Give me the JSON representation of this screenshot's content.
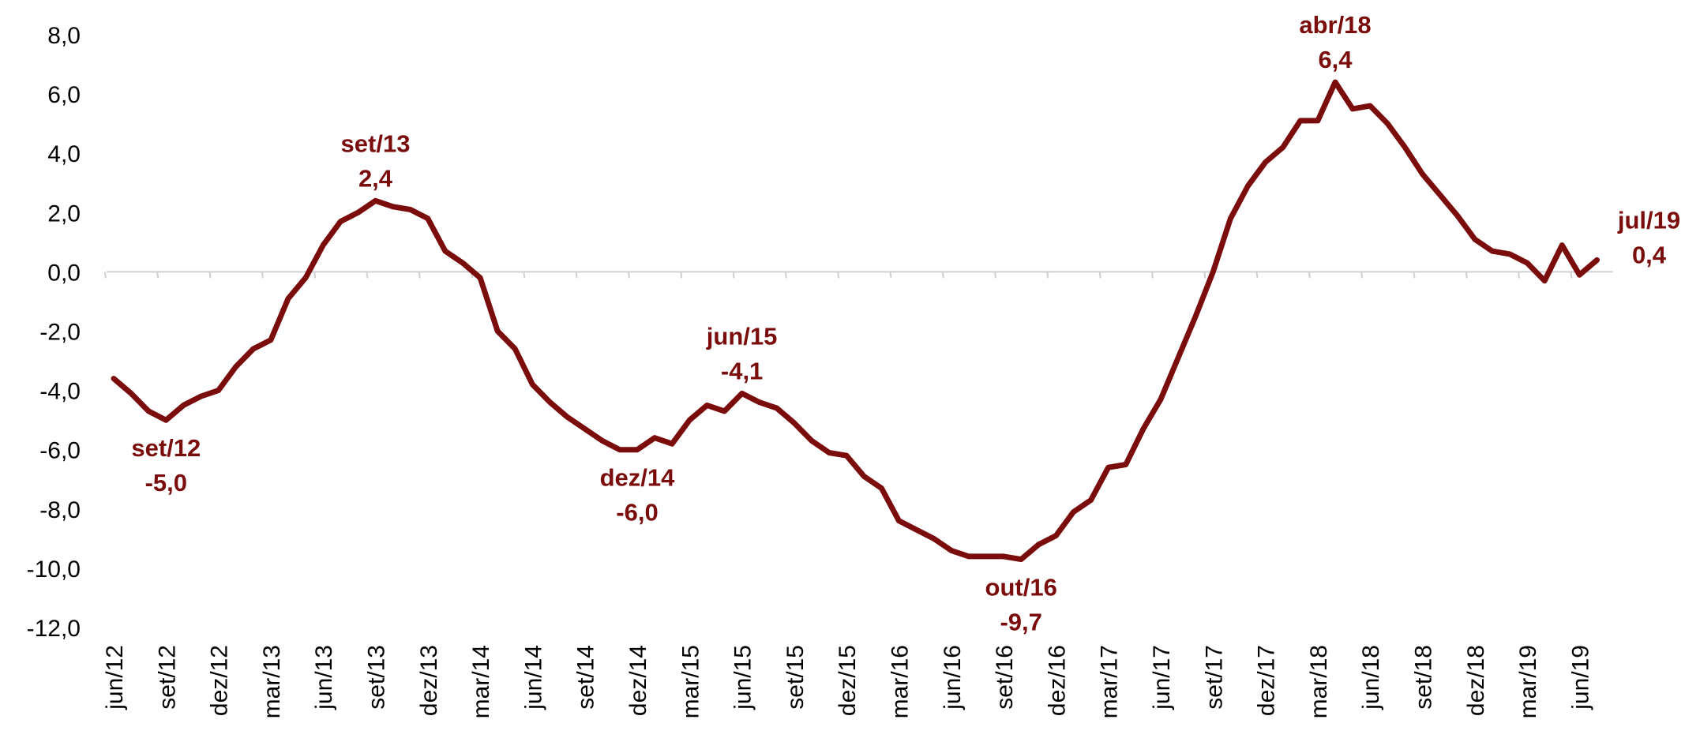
{
  "chart_data": {
    "type": "line",
    "categories": [
      "jun/12",
      null,
      null,
      "set/12",
      null,
      null,
      "dez/12",
      null,
      null,
      "mar/13",
      null,
      null,
      "jun/13",
      null,
      null,
      "set/13",
      null,
      null,
      "dez/13",
      null,
      null,
      "mar/14",
      null,
      null,
      "jun/14",
      null,
      null,
      "set/14",
      null,
      null,
      "dez/14",
      null,
      null,
      "mar/15",
      null,
      null,
      "jun/15",
      null,
      null,
      "set/15",
      null,
      null,
      "dez/15",
      null,
      null,
      "mar/16",
      null,
      null,
      "jun/16",
      null,
      null,
      "set/16",
      null,
      null,
      "dez/16",
      null,
      null,
      "mar/17",
      null,
      null,
      "jun/17",
      null,
      null,
      "set/17",
      null,
      null,
      "dez/17",
      null,
      null,
      "mar/18",
      null,
      null,
      "jun/18",
      null,
      null,
      "set/18",
      null,
      null,
      "dez/18",
      null,
      null,
      "mar/19",
      null,
      null,
      "jun/19",
      null
    ],
    "series": [
      {
        "color": "#7b0c0c",
        "values": [
          -3.6,
          -4.1,
          -4.7,
          -5.0,
          -4.5,
          -4.2,
          -4.0,
          -3.2,
          -2.6,
          -2.3,
          -0.9,
          -0.2,
          0.9,
          1.7,
          2.0,
          2.4,
          2.2,
          2.1,
          1.8,
          0.7,
          0.3,
          -0.2,
          -2.0,
          -2.6,
          -3.8,
          -4.4,
          -4.9,
          -5.3,
          -5.7,
          -6.0,
          -6.0,
          -5.6,
          -5.8,
          -5.0,
          -4.5,
          -4.7,
          -4.1,
          -4.4,
          -4.6,
          -5.1,
          -5.7,
          -6.1,
          -6.2,
          -6.9,
          -7.3,
          -8.4,
          -8.7,
          -9.0,
          -9.4,
          -9.6,
          -9.6,
          -9.6,
          -9.7,
          -9.2,
          -8.9,
          -8.1,
          -7.7,
          -6.6,
          -6.5,
          -5.3,
          -4.3,
          -2.9,
          -1.5,
          0.0,
          1.8,
          2.9,
          3.7,
          4.2,
          5.1,
          5.1,
          6.4,
          5.5,
          5.6,
          5.0,
          4.2,
          3.3,
          2.6,
          1.9,
          1.1,
          0.7,
          0.6,
          0.3,
          -0.3,
          0.9,
          -0.1,
          0.4
        ],
        "point_labels": [
          null,
          null,
          null,
          "set/12",
          null,
          null,
          null,
          null,
          null,
          null,
          null,
          null,
          null,
          null,
          null,
          "set/13",
          null,
          null,
          null,
          null,
          null,
          null,
          null,
          null,
          null,
          null,
          null,
          null,
          null,
          null,
          "dez/14",
          null,
          null,
          null,
          null,
          null,
          "jun/15",
          null,
          null,
          null,
          null,
          null,
          null,
          null,
          null,
          null,
          null,
          null,
          null,
          null,
          null,
          null,
          "out/16",
          null,
          null,
          null,
          null,
          null,
          null,
          null,
          null,
          null,
          null,
          null,
          null,
          null,
          null,
          null,
          null,
          null,
          "abr/18",
          null,
          null,
          null,
          null,
          null,
          null,
          null,
          null,
          null,
          null,
          null,
          null,
          null,
          null,
          "jul/19"
        ],
        "value_labels": [
          null,
          null,
          null,
          "-5,0",
          null,
          null,
          null,
          null,
          null,
          null,
          null,
          null,
          null,
          null,
          null,
          "2,4",
          null,
          null,
          null,
          null,
          null,
          null,
          null,
          null,
          null,
          null,
          null,
          null,
          null,
          null,
          "-6,0",
          null,
          null,
          null,
          null,
          null,
          "-4,1",
          null,
          null,
          null,
          null,
          null,
          null,
          null,
          null,
          null,
          null,
          null,
          null,
          null,
          null,
          null,
          "-9,7",
          null,
          null,
          null,
          null,
          null,
          null,
          null,
          null,
          null,
          null,
          null,
          null,
          null,
          null,
          null,
          null,
          null,
          "6,4",
          null,
          null,
          null,
          null,
          null,
          null,
          null,
          null,
          null,
          null,
          null,
          null,
          null,
          null,
          "0,4"
        ]
      }
    ],
    "ylim": [
      -12,
      8
    ],
    "yticks": [
      {
        "value": -12,
        "label": "-12,0"
      },
      {
        "value": -10,
        "label": "-10,0"
      },
      {
        "value": -8,
        "label": "-8,0"
      },
      {
        "value": -6,
        "label": "-6,0"
      },
      {
        "value": -4,
        "label": "-4,0"
      },
      {
        "value": -2,
        "label": "-2,0"
      },
      {
        "value": 0,
        "label": "0,0"
      },
      {
        "value": 2,
        "label": "2,0"
      },
      {
        "value": 4,
        "label": "4,0"
      },
      {
        "value": 6,
        "label": "6,0"
      },
      {
        "value": 8,
        "label": "8,0"
      }
    ],
    "grid": false
  }
}
